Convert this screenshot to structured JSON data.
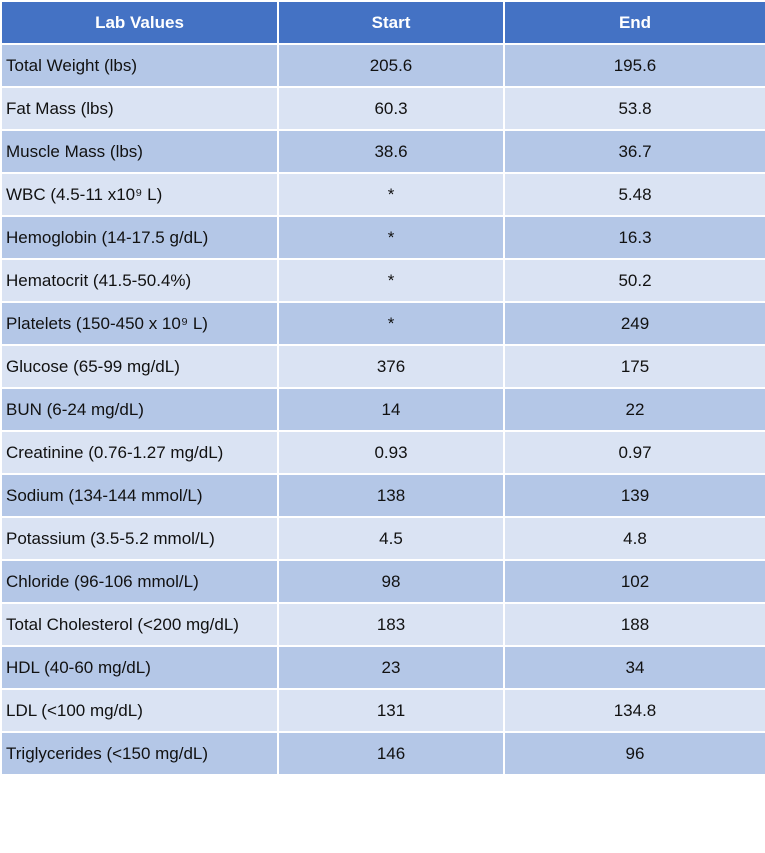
{
  "table": {
    "header": [
      "Lab Values",
      "Start",
      "End"
    ],
    "rows": [
      [
        "Total Weight (lbs)",
        "205.6",
        "195.6"
      ],
      [
        "Fat Mass (lbs)",
        "60.3",
        "53.8"
      ],
      [
        "Muscle Mass (lbs)",
        "38.6",
        "36.7"
      ],
      [
        "WBC (4.5-11 x10⁹ L)",
        "*",
        "5.48"
      ],
      [
        "Hemoglobin (14-17.5 g/dL)",
        "*",
        "16.3"
      ],
      [
        "Hematocrit (41.5-50.4%)",
        "*",
        "50.2"
      ],
      [
        "Platelets (150-450 x 10⁹ L)",
        "*",
        "249"
      ],
      [
        "Glucose (65-99 mg/dL)",
        "376",
        "175"
      ],
      [
        "BUN (6-24 mg/dL)",
        "14",
        "22"
      ],
      [
        "Creatinine (0.76-1.27 mg/dL)",
        "0.93",
        "0.97"
      ],
      [
        "Sodium (134-144 mmol/L)",
        "138",
        "139"
      ],
      [
        "Potassium (3.5-5.2 mmol/L)",
        "4.5",
        "4.8"
      ],
      [
        "Chloride (96-106 mmol/L)",
        "98",
        "102"
      ],
      [
        "Total Cholesterol (<200 mg/dL)",
        "183",
        "188"
      ],
      [
        "HDL (40-60 mg/dL)",
        "23",
        "34"
      ],
      [
        "LDL (<100 mg/dL)",
        "131",
        "134.8"
      ],
      [
        "Triglycerides (<150 mg/dL)",
        "146",
        "96"
      ]
    ]
  }
}
